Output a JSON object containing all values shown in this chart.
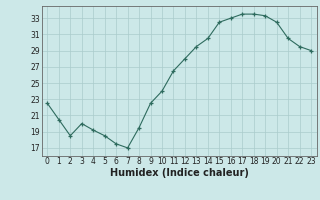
{
  "x": [
    0,
    1,
    2,
    3,
    4,
    5,
    6,
    7,
    8,
    9,
    10,
    11,
    12,
    13,
    14,
    15,
    16,
    17,
    18,
    19,
    20,
    21,
    22,
    23
  ],
  "y": [
    22.5,
    20.5,
    18.5,
    20.0,
    19.2,
    18.5,
    17.5,
    17.0,
    19.5,
    22.5,
    24.0,
    26.5,
    28.0,
    29.5,
    30.5,
    32.5,
    33.0,
    33.5,
    33.5,
    33.3,
    32.5,
    30.5,
    29.5,
    29.0
  ],
  "xlabel": "Humidex (Indice chaleur)",
  "xlim": [
    -0.5,
    23.5
  ],
  "ylim": [
    16.0,
    34.5
  ],
  "yticks": [
    17,
    19,
    21,
    23,
    25,
    27,
    29,
    31,
    33
  ],
  "xticks": [
    0,
    1,
    2,
    3,
    4,
    5,
    6,
    7,
    8,
    9,
    10,
    11,
    12,
    13,
    14,
    15,
    16,
    17,
    18,
    19,
    20,
    21,
    22,
    23
  ],
  "line_color": "#2e6b5e",
  "marker": "+",
  "bg_color": "#cce8e8",
  "grid_color": "#aacccc",
  "tick_fontsize": 5.5,
  "xlabel_fontsize": 7.0
}
